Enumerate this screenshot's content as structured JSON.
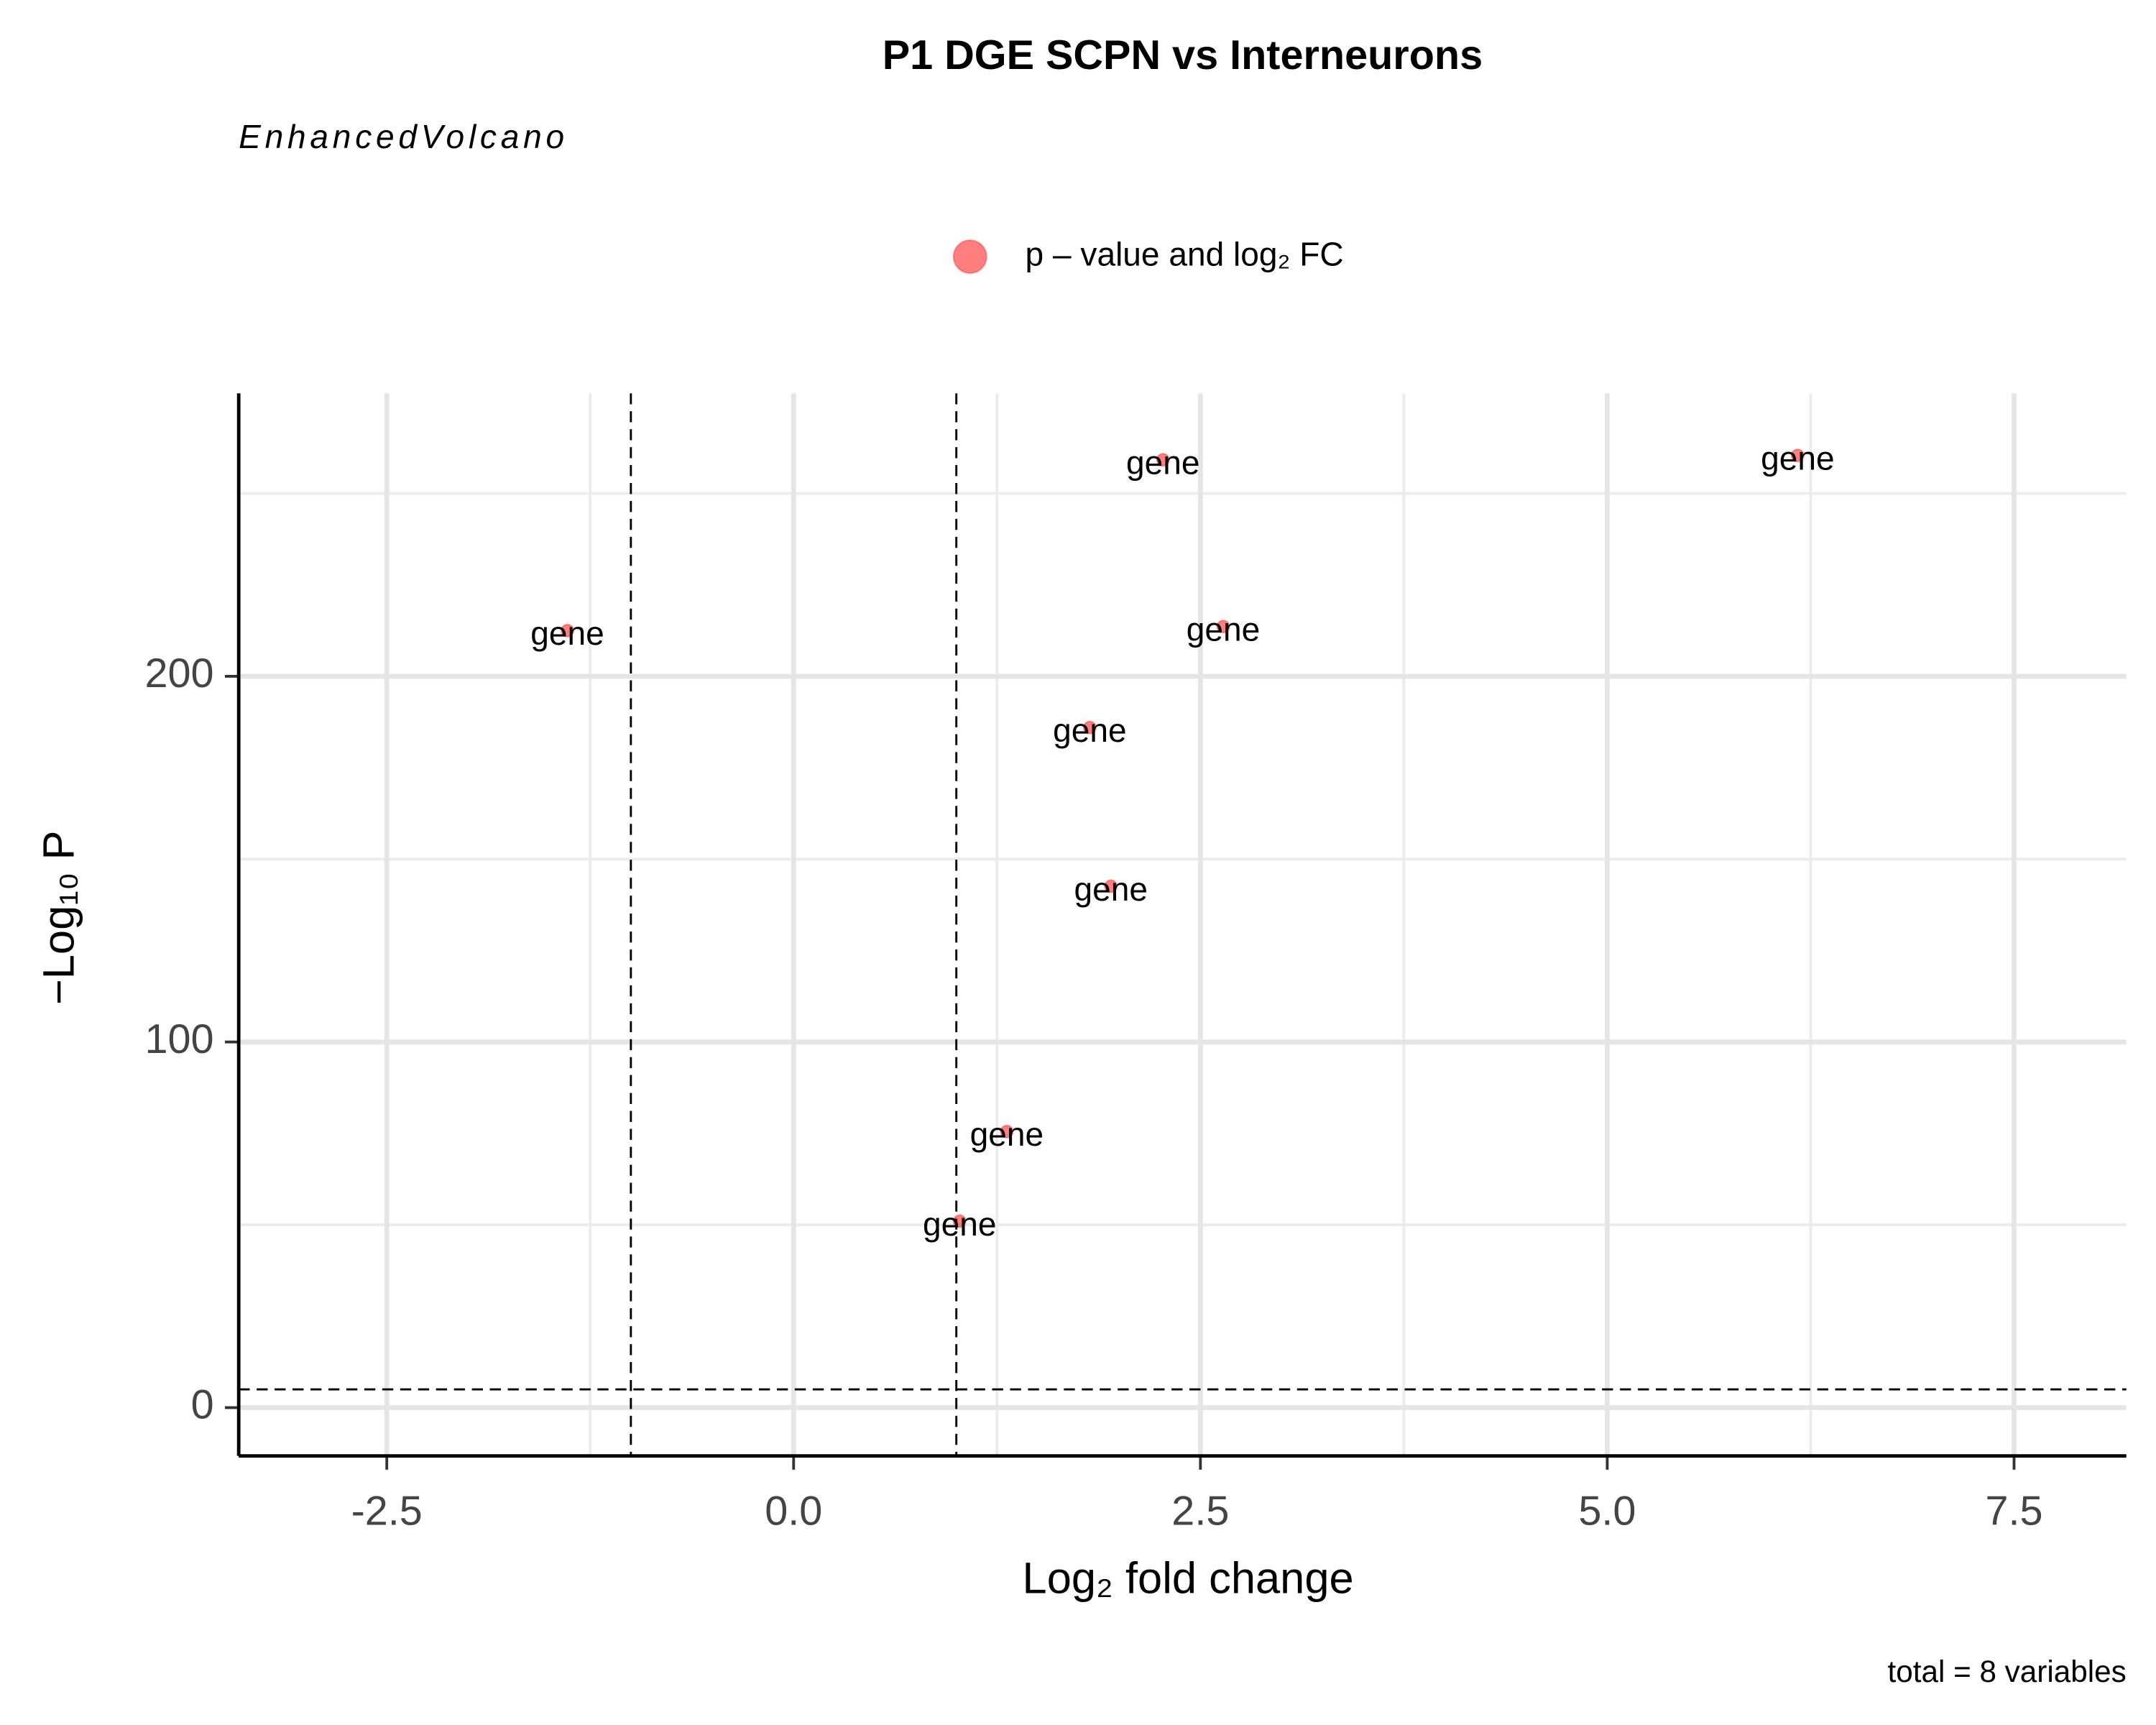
{
  "chart_data": {
    "type": "scatter",
    "title": "P1 DGE SCPN vs Interneurons",
    "subtitle": "EnhancedVolcano",
    "caption": "total = 8 variables",
    "xlabel": "Log₂ fold change",
    "ylabel": "−Log₁₀ P",
    "series": [
      {
        "name": "p – value and log₂ FC",
        "color": "#ff0000",
        "x": [
          2.27,
          6.17,
          -1.39,
          2.64,
          1.82,
          1.95,
          1.31,
          1.02
        ],
        "values": [
          259.2,
          260.4,
          212.5,
          213.6,
          186.0,
          142.6,
          75.5,
          51.0
        ],
        "labels": [
          "gene",
          "gene",
          "gene",
          "gene",
          "gene",
          "gene",
          "gene",
          "gene"
        ]
      }
    ],
    "xlim": [
      -3.41,
      8.19
    ],
    "ylim": [
      -13.2,
      277.4
    ],
    "xticks": [
      {
        "value": -2.5,
        "label": "-2.5"
      },
      {
        "value": 0,
        "label": "0.0"
      },
      {
        "value": 2.5,
        "label": "2.5"
      },
      {
        "value": 5,
        "label": "5.0"
      },
      {
        "value": 7.5,
        "label": "7.5"
      }
    ],
    "yticks": [
      0,
      100,
      200
    ],
    "xminorticks": [
      -1.25,
      1.25,
      3.75,
      6.25
    ],
    "yminorticks": [
      50,
      150,
      250
    ],
    "vlines": [
      -1,
      1
    ],
    "hlines": [
      5
    ],
    "grid": true,
    "legend": "top"
  }
}
